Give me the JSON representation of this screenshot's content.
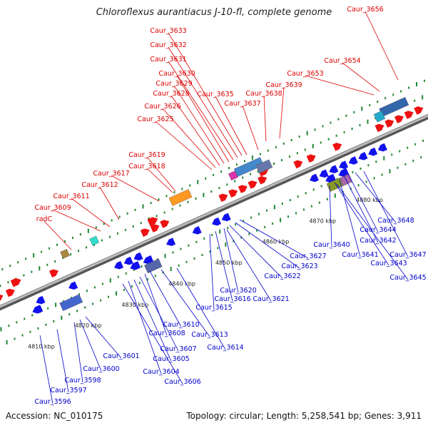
{
  "title": "Chloroflexus aurantiacus J-10-fl, complete genome",
  "footer": {
    "accession": "Accession: NC_010175",
    "stats": "Topology: circular; Length: 5,258,541 bp; Genes: 3,911"
  },
  "colors": {
    "forward_gene": "#ee1111",
    "reverse_gene": "#1111ee",
    "forward_label": "#dd0000",
    "reverse_label": "#0000cc",
    "backbone": "#888888",
    "tick_major": "#228833",
    "tick_minor": "#228833"
  },
  "scale_labels": [
    "4810 kbp",
    "4820 kbp",
    "4830 kbp",
    "4840 kbp",
    "4850 kbp",
    "4860 kbp",
    "4870 kbp",
    "4880 kbp"
  ],
  "top_labels": [
    "Caur_3656",
    "Caur_3654",
    "Caur_3653",
    "Caur_3639",
    "Caur_3638",
    "Caur_3637",
    "Caur_3635",
    "Caur_3633",
    "Caur_3632",
    "Caur_3631",
    "Caur_3630",
    "Caur_3629",
    "Caur_3628",
    "Caur_3626",
    "Caur_3625",
    "Caur_3619",
    "Caur_3618",
    "Caur_3617",
    "Caur_3612",
    "Caur_3611",
    "Caur_3609",
    "radC"
  ],
  "bottom_labels": [
    "Caur_3648",
    "Caur_3644",
    "Caur_3642",
    "Caur_3647",
    "Caur_3640",
    "Caur_3641",
    "Caur_3643",
    "Caur_3645",
    "Caur_3627",
    "Caur_3623",
    "Caur_3622",
    "Caur_3620",
    "Caur_3621",
    "Caur_3616",
    "Caur_3615",
    "Caur_3610",
    "Caur_3613",
    "Caur_3608",
    "Caur_3614",
    "Caur_3607",
    "Caur_3605",
    "Caur_3604",
    "Caur_3606",
    "Caur_3601",
    "Caur_3600",
    "Caur_3598",
    "Caur_3597",
    "Caur_3596"
  ]
}
